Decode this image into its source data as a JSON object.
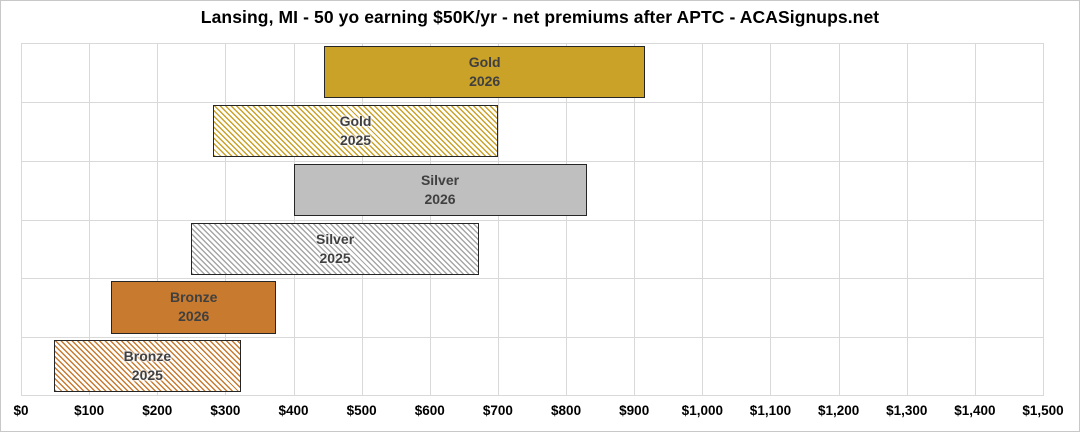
{
  "title": "Lansing, MI - 50 yo earning $50K/yr - net premiums after APTC - ACASignups.net",
  "chart_data": {
    "type": "bar",
    "subtype": "horizontal-floating-range-bars",
    "title": "Lansing, MI - 50 yo earning $50K/yr - net premiums after APTC - ACASignups.net",
    "xlabel": "",
    "ylabel": "",
    "xlim": [
      0,
      1500
    ],
    "x_tick_step": 100,
    "x_tick_labels": [
      "$0",
      "$100",
      "$200",
      "$300",
      "$400",
      "$500",
      "$600",
      "$700",
      "$800",
      "$900",
      "$1,000",
      "$1,100",
      "$1,200",
      "$1,300",
      "$1,400",
      "$1,500"
    ],
    "grid": "both",
    "legend": "none",
    "categories": [
      "Gold 2026",
      "Gold 2025",
      "Silver 2026",
      "Silver 2025",
      "Bronze 2026",
      "Bronze 2025"
    ],
    "bars": [
      {
        "category": "Gold 2026",
        "label_lines": [
          "Gold",
          "2026"
        ],
        "range_usd_per_month": [
          445,
          916
        ],
        "style": "solid",
        "color": "#C9A227"
      },
      {
        "category": "Gold 2025",
        "label_lines": [
          "Gold",
          "2025"
        ],
        "range_usd_per_month": [
          282,
          700
        ],
        "style": "hatched",
        "color": "#C9A227"
      },
      {
        "category": "Silver 2026",
        "label_lines": [
          "Silver",
          "2026"
        ],
        "range_usd_per_month": [
          400,
          830
        ],
        "style": "solid",
        "color": "#BFBFBF"
      },
      {
        "category": "Silver 2025",
        "label_lines": [
          "Silver",
          "2025"
        ],
        "range_usd_per_month": [
          250,
          672
        ],
        "style": "hatched",
        "color": "#A6A6A6"
      },
      {
        "category": "Bronze 2026",
        "label_lines": [
          "Bronze",
          "2026"
        ],
        "range_usd_per_month": [
          132,
          375
        ],
        "style": "solid",
        "color": "#C87A2E"
      },
      {
        "category": "Bronze 2025",
        "label_lines": [
          "Bronze",
          "2025"
        ],
        "range_usd_per_month": [
          48,
          323
        ],
        "style": "hatched",
        "color": "#C87A2E"
      }
    ],
    "colors": {
      "bar_border": "#262626",
      "bar_label_text": "#404040",
      "gridline": "#D9D9D9",
      "axis_text": "#000000",
      "background": "#FFFFFF",
      "chart_border": "#C8C8C8"
    }
  }
}
